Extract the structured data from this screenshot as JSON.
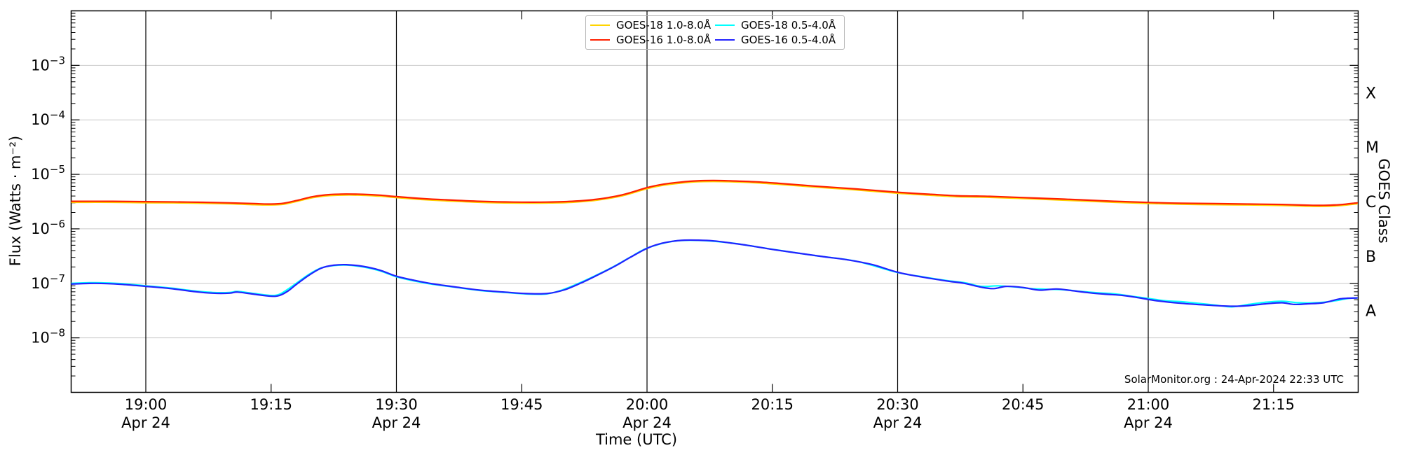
{
  "chart_data": {
    "type": "line",
    "title": "",
    "xlabel": "Time (UTC)",
    "ylabel": "Flux (Watts · m⁻²)",
    "y2label": "GOES Class",
    "watermark": "SolarMonitor.org : 24-Apr-2024 22:33 UTC",
    "x_unit": "minutes after 19:00 UTC",
    "x_range_minutes": [
      -8.9,
      145.1
    ],
    "ylim_exponents": [
      -9,
      -2
    ],
    "grid": {
      "horizontal_gray_at_decades": true,
      "vertical_black_at_labeled_half_hours": true
    },
    "legend_position": "top-center",
    "y_tick_exponents": [
      -3,
      -4,
      -5,
      -6,
      -7,
      -8
    ],
    "x_ticks": [
      {
        "label": "19:00",
        "minute": 0,
        "date": "Apr 24",
        "grid": true
      },
      {
        "label": "19:15",
        "minute": 15,
        "date": null,
        "grid": false
      },
      {
        "label": "19:30",
        "minute": 30,
        "date": "Apr 24",
        "grid": true
      },
      {
        "label": "19:45",
        "minute": 45,
        "date": null,
        "grid": false
      },
      {
        "label": "20:00",
        "minute": 60,
        "date": "Apr 24",
        "grid": true
      },
      {
        "label": "20:15",
        "minute": 75,
        "date": null,
        "grid": false
      },
      {
        "label": "20:30",
        "minute": 90,
        "date": "Apr 24",
        "grid": true
      },
      {
        "label": "20:45",
        "minute": 105,
        "date": null,
        "grid": false
      },
      {
        "label": "21:00",
        "minute": 120,
        "date": "Apr 24",
        "grid": true
      },
      {
        "label": "21:15",
        "minute": 135,
        "date": null,
        "grid": false
      }
    ],
    "goes_classes": [
      {
        "letter": "X",
        "mid_exponent": -3.5
      },
      {
        "letter": "M",
        "mid_exponent": -4.5
      },
      {
        "letter": "C",
        "mid_exponent": -5.5
      },
      {
        "letter": "B",
        "mid_exponent": -6.5
      },
      {
        "letter": "A",
        "mid_exponent": -7.5
      }
    ],
    "series": [
      {
        "id": "goes18-long",
        "name": "GOES-18 1.0-8.0Å",
        "color": "#ffd400",
        "points": [
          [
            -9,
            3.07e-06
          ],
          [
            -4,
            3.07e-06
          ],
          [
            0,
            3.02e-06
          ],
          [
            5,
            2.98e-06
          ],
          [
            10,
            2.88e-06
          ],
          [
            13,
            2.78e-06
          ],
          [
            15,
            2.74e-06
          ],
          [
            16.5,
            2.83e-06
          ],
          [
            18,
            3.17e-06
          ],
          [
            20,
            3.74e-06
          ],
          [
            22,
            4.08e-06
          ],
          [
            24,
            4.18e-06
          ],
          [
            26,
            4.13e-06
          ],
          [
            28,
            3.98e-06
          ],
          [
            30,
            3.74e-06
          ],
          [
            33,
            3.46e-06
          ],
          [
            36,
            3.26e-06
          ],
          [
            40,
            3.07e-06
          ],
          [
            44,
            2.98e-06
          ],
          [
            48,
            2.98e-06
          ],
          [
            51,
            3.07e-06
          ],
          [
            54,
            3.36e-06
          ],
          [
            57,
            4.03e-06
          ],
          [
            60,
            5.47e-06
          ],
          [
            62,
            6.34e-06
          ],
          [
            64,
            6.91e-06
          ],
          [
            66,
            7.3e-06
          ],
          [
            68,
            7.39e-06
          ],
          [
            70,
            7.3e-06
          ],
          [
            73,
            7.01e-06
          ],
          [
            76,
            6.53e-06
          ],
          [
            80,
            5.86e-06
          ],
          [
            85,
            5.18e-06
          ],
          [
            90,
            4.51e-06
          ],
          [
            94,
            4.13e-06
          ],
          [
            97,
            3.89e-06
          ],
          [
            99,
            3.84e-06
          ],
          [
            101,
            3.79e-06
          ],
          [
            104,
            3.65e-06
          ],
          [
            108,
            3.46e-06
          ],
          [
            112,
            3.26e-06
          ],
          [
            116,
            3.07e-06
          ],
          [
            120,
            2.93e-06
          ],
          [
            124,
            2.83e-06
          ],
          [
            128,
            2.78e-06
          ],
          [
            132,
            2.74e-06
          ],
          [
            136,
            2.69e-06
          ],
          [
            139,
            2.61e-06
          ],
          [
            141,
            2.59e-06
          ],
          [
            143,
            2.67e-06
          ],
          [
            145,
            2.88e-06
          ]
        ]
      },
      {
        "id": "goes16-long",
        "name": "GOES-16 1.0-8.0Å",
        "color": "#ff2000",
        "points": [
          [
            -9,
            3.2e-06
          ],
          [
            -4,
            3.2e-06
          ],
          [
            0,
            3.15e-06
          ],
          [
            5,
            3.1e-06
          ],
          [
            10,
            3e-06
          ],
          [
            13,
            2.9e-06
          ],
          [
            15,
            2.85e-06
          ],
          [
            16.5,
            2.95e-06
          ],
          [
            18,
            3.3e-06
          ],
          [
            20,
            3.9e-06
          ],
          [
            22,
            4.25e-06
          ],
          [
            24,
            4.35e-06
          ],
          [
            26,
            4.3e-06
          ],
          [
            28,
            4.15e-06
          ],
          [
            30,
            3.9e-06
          ],
          [
            33,
            3.6e-06
          ],
          [
            36,
            3.4e-06
          ],
          [
            40,
            3.2e-06
          ],
          [
            44,
            3.1e-06
          ],
          [
            48,
            3.1e-06
          ],
          [
            51,
            3.2e-06
          ],
          [
            54,
            3.5e-06
          ],
          [
            57,
            4.2e-06
          ],
          [
            60,
            5.7e-06
          ],
          [
            62,
            6.6e-06
          ],
          [
            64,
            7.2e-06
          ],
          [
            66,
            7.6e-06
          ],
          [
            68,
            7.7e-06
          ],
          [
            70,
            7.6e-06
          ],
          [
            73,
            7.3e-06
          ],
          [
            76,
            6.8e-06
          ],
          [
            80,
            6.1e-06
          ],
          [
            85,
            5.4e-06
          ],
          [
            90,
            4.7e-06
          ],
          [
            94,
            4.3e-06
          ],
          [
            97,
            4.05e-06
          ],
          [
            99,
            4e-06
          ],
          [
            101,
            3.95e-06
          ],
          [
            104,
            3.8e-06
          ],
          [
            108,
            3.6e-06
          ],
          [
            112,
            3.4e-06
          ],
          [
            116,
            3.2e-06
          ],
          [
            120,
            3.05e-06
          ],
          [
            124,
            2.95e-06
          ],
          [
            128,
            2.9e-06
          ],
          [
            132,
            2.85e-06
          ],
          [
            136,
            2.8e-06
          ],
          [
            139,
            2.72e-06
          ],
          [
            141,
            2.7e-06
          ],
          [
            143,
            2.78e-06
          ],
          [
            145,
            3e-06
          ]
        ]
      },
      {
        "id": "goes18-short",
        "name": "GOES-18 0.5-4.0Å",
        "color": "#00ffff",
        "points": [
          [
            -9,
            1e-07
          ],
          [
            -6,
            1.03e-07
          ],
          [
            -3,
            9.9e-08
          ],
          [
            0,
            9e-08
          ],
          [
            3,
            8.2e-08
          ],
          [
            6,
            7.2e-08
          ],
          [
            8,
            6.8e-08
          ],
          [
            10,
            6.8e-08
          ],
          [
            11,
            7.1e-08
          ],
          [
            13,
            6.5e-08
          ],
          [
            15,
            6e-08
          ],
          [
            16,
            6.3e-08
          ],
          [
            17,
            7.8e-08
          ],
          [
            18,
            1e-07
          ],
          [
            19.5,
            1.45e-07
          ],
          [
            21,
            1.92e-07
          ],
          [
            22.5,
            2.12e-07
          ],
          [
            24,
            2.16e-07
          ],
          [
            26,
            2e-07
          ],
          [
            28,
            1.7e-07
          ],
          [
            30,
            1.32e-07
          ],
          [
            32,
            1.12e-07
          ],
          [
            34,
            9.8e-08
          ],
          [
            37,
            8.5e-08
          ],
          [
            40,
            7.4e-08
          ],
          [
            43,
            6.8e-08
          ],
          [
            45.5,
            6.4e-08
          ],
          [
            48,
            6.4e-08
          ],
          [
            50,
            7.7e-08
          ],
          [
            52,
            1.03e-07
          ],
          [
            54,
            1.43e-07
          ],
          [
            56,
            2.03e-07
          ],
          [
            58,
            3.02e-07
          ],
          [
            60,
            4.42e-07
          ],
          [
            63,
            5.88e-07
          ],
          [
            66,
            6.15e-07
          ],
          [
            70,
            5.52e-07
          ],
          [
            75,
            4.22e-07
          ],
          [
            80,
            3.25e-07
          ],
          [
            85,
            2.55e-07
          ],
          [
            90,
            1.58e-07
          ],
          [
            93,
            1.32e-07
          ],
          [
            96,
            1.12e-07
          ],
          [
            98,
            1.03e-07
          ],
          [
            100,
            8.8e-08
          ],
          [
            102,
            9e-08
          ],
          [
            104,
            8.6e-08
          ],
          [
            106,
            8e-08
          ],
          [
            108,
            7.8e-08
          ],
          [
            110,
            7.6e-08
          ],
          [
            112,
            7.1e-08
          ],
          [
            114,
            6.7e-08
          ],
          [
            116,
            6.4e-08
          ],
          [
            118,
            5.8e-08
          ],
          [
            120,
            5.3e-08
          ],
          [
            122,
            4.8e-08
          ],
          [
            124,
            4.6e-08
          ],
          [
            126,
            4.3e-08
          ],
          [
            128,
            4e-08
          ],
          [
            130,
            3.7e-08
          ],
          [
            132,
            4.1e-08
          ],
          [
            134,
            4.5e-08
          ],
          [
            136,
            4.7e-08
          ],
          [
            138,
            4.4e-08
          ],
          [
            140,
            4.4e-08
          ],
          [
            142,
            4.7e-08
          ],
          [
            144,
            5.3e-08
          ],
          [
            145,
            5.4e-08
          ]
        ]
      },
      {
        "id": "goes16-short",
        "name": "GOES-16 0.5-4.0Å",
        "color": "#2222ff",
        "points": [
          [
            -9,
            9.7e-08
          ],
          [
            -6,
            1e-07
          ],
          [
            -3,
            9.6e-08
          ],
          [
            0,
            8.8e-08
          ],
          [
            3,
            8e-08
          ],
          [
            6,
            7e-08
          ],
          [
            8,
            6.6e-08
          ],
          [
            10,
            6.6e-08
          ],
          [
            11,
            6.9e-08
          ],
          [
            13,
            6.3e-08
          ],
          [
            15,
            5.8e-08
          ],
          [
            16,
            6e-08
          ],
          [
            17,
            7.2e-08
          ],
          [
            18,
            9.5e-08
          ],
          [
            19.5,
            1.4e-07
          ],
          [
            21,
            1.9e-07
          ],
          [
            22.5,
            2.15e-07
          ],
          [
            24,
            2.2e-07
          ],
          [
            26,
            2.05e-07
          ],
          [
            28,
            1.75e-07
          ],
          [
            30,
            1.35e-07
          ],
          [
            32,
            1.15e-07
          ],
          [
            34,
            1e-07
          ],
          [
            37,
            8.6e-08
          ],
          [
            40,
            7.5e-08
          ],
          [
            43,
            6.9e-08
          ],
          [
            45.5,
            6.5e-08
          ],
          [
            48,
            6.5e-08
          ],
          [
            50,
            7.5e-08
          ],
          [
            52,
            1e-07
          ],
          [
            54,
            1.4e-07
          ],
          [
            56,
            2e-07
          ],
          [
            58,
            3e-07
          ],
          [
            60,
            4.4e-07
          ],
          [
            61.5,
            5.3e-07
          ],
          [
            63,
            5.9e-07
          ],
          [
            64.5,
            6.2e-07
          ],
          [
            66,
            6.2e-07
          ],
          [
            68,
            6e-07
          ],
          [
            70,
            5.5e-07
          ],
          [
            72,
            5e-07
          ],
          [
            75,
            4.2e-07
          ],
          [
            78,
            3.6e-07
          ],
          [
            81,
            3.1e-07
          ],
          [
            84,
            2.7e-07
          ],
          [
            87,
            2.2e-07
          ],
          [
            90,
            1.6e-07
          ],
          [
            93,
            1.3e-07
          ],
          [
            96,
            1.1e-07
          ],
          [
            98,
            1e-07
          ],
          [
            100,
            8.5e-08
          ],
          [
            101.5,
            8e-08
          ],
          [
            103,
            8.8e-08
          ],
          [
            105,
            8.4e-08
          ],
          [
            107,
            7.5e-08
          ],
          [
            109,
            7.9e-08
          ],
          [
            111,
            7.3e-08
          ],
          [
            113,
            6.7e-08
          ],
          [
            115,
            6.3e-08
          ],
          [
            117,
            6e-08
          ],
          [
            119,
            5.4e-08
          ],
          [
            121,
            4.8e-08
          ],
          [
            124,
            4.3e-08
          ],
          [
            127,
            4e-08
          ],
          [
            130,
            3.8e-08
          ],
          [
            132,
            3.9e-08
          ],
          [
            134,
            4.2e-08
          ],
          [
            136,
            4.4e-08
          ],
          [
            137.5,
            4.1e-08
          ],
          [
            139,
            4.2e-08
          ],
          [
            141,
            4.4e-08
          ],
          [
            143,
            5.2e-08
          ],
          [
            145,
            5.4e-08
          ]
        ]
      }
    ],
    "colors": {
      "grid_gray": "#c9c9c9",
      "grid_black": "#000000",
      "axis": "#000000"
    }
  }
}
